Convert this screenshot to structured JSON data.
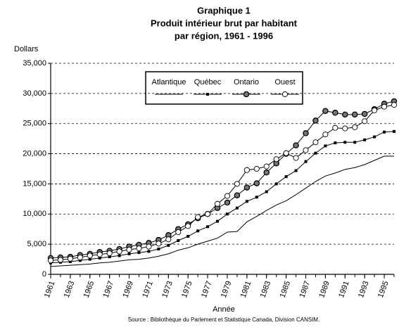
{
  "chart_data": {
    "type": "line",
    "title": [
      "Graphique 1",
      "Produit intérieur brut par habitant",
      "par région, 1961 - 1996"
    ],
    "y_label": "Dollars",
    "x_label": "Année",
    "source": "Source : Bibliothèque du Parlement et Statistique Canada, Division CANSIM.",
    "x": [
      1961,
      1962,
      1963,
      1964,
      1965,
      1966,
      1967,
      1968,
      1969,
      1970,
      1971,
      1972,
      1973,
      1974,
      1975,
      1976,
      1977,
      1978,
      1979,
      1980,
      1981,
      1982,
      1983,
      1984,
      1985,
      1986,
      1987,
      1988,
      1989,
      1990,
      1991,
      1992,
      1993,
      1994,
      1995,
      1996
    ],
    "xlim": [
      1961,
      1996
    ],
    "xticks": [
      1961,
      1963,
      1965,
      1967,
      1969,
      1971,
      1973,
      1975,
      1977,
      1979,
      1981,
      1983,
      1985,
      1987,
      1989,
      1991,
      1993,
      1995
    ],
    "ylim": [
      0,
      35000
    ],
    "yticks": [
      0,
      {
        "value": 5000,
        "label": "5,000"
      },
      {
        "value": 10000,
        "label": "10,000"
      },
      {
        "value": 15000,
        "label": "15,000"
      },
      {
        "value": 20000,
        "label": "20,000"
      },
      {
        "value": 25000,
        "label": "25,000"
      },
      {
        "value": 30000,
        "label": "30,000"
      },
      {
        "value": 35000,
        "label": "35,000"
      }
    ],
    "grid": true,
    "series": [
      {
        "name": "Atlantique",
        "color": "#000000",
        "marker": "none",
        "values": [
          1300,
          1400,
          1500,
          1600,
          1700,
          1900,
          2000,
          2200,
          2400,
          2500,
          2700,
          3000,
          3400,
          4000,
          4400,
          5000,
          5500,
          6000,
          7000,
          7100,
          8700,
          9600,
          10600,
          11500,
          12200,
          13200,
          14300,
          15400,
          16300,
          16800,
          17400,
          17700,
          18200,
          18900,
          19600,
          19600
        ]
      },
      {
        "name": "Québec",
        "color": "#000000",
        "marker": "square",
        "values": [
          1900,
          2000,
          2100,
          2300,
          2500,
          2700,
          2900,
          3100,
          3400,
          3600,
          3800,
          4200,
          4800,
          5600,
          6300,
          7200,
          7900,
          8800,
          10000,
          11000,
          12100,
          12800,
          13700,
          15000,
          16200,
          17200,
          18700,
          20100,
          21300,
          21800,
          21900,
          21900,
          22300,
          22800,
          23600,
          23700
        ]
      },
      {
        "name": "Ontario",
        "color": "#000000",
        "marker": "filled-circle",
        "values": [
          2700,
          2800,
          2900,
          3200,
          3400,
          3700,
          3900,
          4200,
          4600,
          4900,
          5200,
          5700,
          6500,
          7500,
          8300,
          9300,
          10000,
          11000,
          11900,
          13100,
          14400,
          15100,
          16900,
          18400,
          20000,
          21400,
          23400,
          25500,
          27100,
          26800,
          26500,
          26500,
          26600,
          27400,
          28300,
          28700
        ]
      },
      {
        "name": "Ouest",
        "color": "#000000",
        "marker": "open-circle",
        "values": [
          2300,
          2400,
          2600,
          2800,
          3100,
          3300,
          3500,
          3800,
          4100,
          4300,
          4600,
          5100,
          5800,
          7000,
          8000,
          9500,
          10000,
          11700,
          13000,
          15000,
          17300,
          17500,
          17900,
          19100,
          20100,
          19300,
          20600,
          21900,
          23200,
          24300,
          24200,
          24400,
          25400,
          27200,
          27800,
          28100
        ]
      }
    ]
  }
}
